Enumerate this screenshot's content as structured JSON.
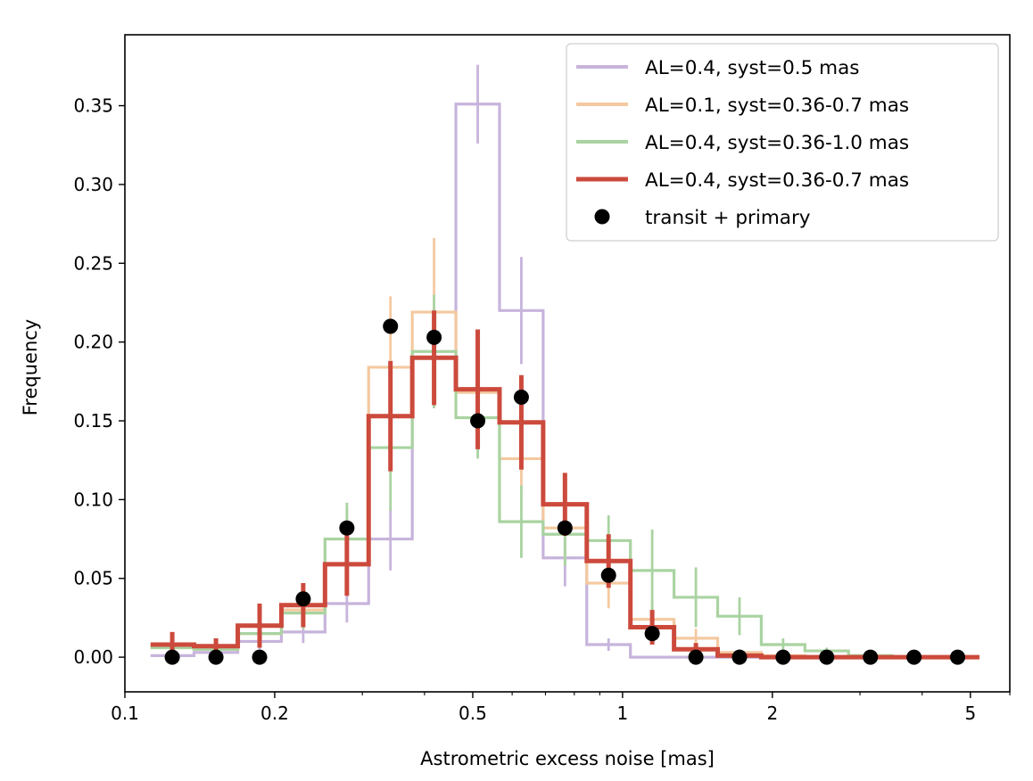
{
  "chart_data": {
    "type": "step-histogram",
    "xlabel": "Astrometric excess noise [mas]",
    "ylabel": "Frequency",
    "xscale": "log",
    "xlim": [
      0.1,
      6.0
    ],
    "ylim": [
      -0.022,
      0.395
    ],
    "xticks": [
      {
        "value": 0.1,
        "label": "0.1"
      },
      {
        "value": 0.2,
        "label": "0.2"
      },
      {
        "value": 0.5,
        "label": "0.5"
      },
      {
        "value": 1,
        "label": "1"
      },
      {
        "value": 2,
        "label": "2"
      },
      {
        "value": 5,
        "label": "5"
      }
    ],
    "yticks": [
      {
        "value": 0.0,
        "label": "0.00"
      },
      {
        "value": 0.05,
        "label": "0.05"
      },
      {
        "value": 0.1,
        "label": "0.10"
      },
      {
        "value": 0.15,
        "label": "0.15"
      },
      {
        "value": 0.2,
        "label": "0.20"
      },
      {
        "value": 0.25,
        "label": "0.25"
      },
      {
        "value": 0.3,
        "label": "0.30"
      },
      {
        "value": 0.35,
        "label": "0.35"
      }
    ],
    "bin_edges": [
      0.1126,
      0.1377,
      0.1686,
      0.2063,
      0.2524,
      0.3089,
      0.378,
      0.4625,
      0.566,
      0.6926,
      0.8475,
      1.037,
      1.269,
      1.553,
      1.9,
      2.325,
      2.845,
      3.482,
      4.261,
      5.214
    ],
    "bin_centers": [
      0.1245,
      0.1524,
      0.1865,
      0.2282,
      0.2793,
      0.3417,
      0.4181,
      0.5117,
      0.6261,
      0.7661,
      0.9374,
      1.147,
      1.404,
      1.718,
      2.102,
      2.572,
      3.148,
      3.852,
      4.713
    ],
    "series": [
      {
        "name": "AL=0.4, syst=0.5 mas",
        "color": "#c7b4dc",
        "style": "step",
        "values": [
          0.001,
          0.003,
          0.01,
          0.016,
          0.034,
          0.075,
          0.19,
          0.351,
          0.22,
          0.063,
          0.008,
          0.0,
          0.0,
          0.0,
          0.0,
          0.0,
          0.0,
          0.0,
          0.0
        ],
        "errors": [
          0.001,
          0.002,
          0.005,
          0.007,
          0.012,
          0.02,
          0.032,
          0.025,
          0.034,
          0.018,
          0.004,
          0.0,
          0.0,
          0.0,
          0.0,
          0.0,
          0.0,
          0.0,
          0.0
        ]
      },
      {
        "name": "AL=0.1, syst=0.36-0.7 mas",
        "color": "#f4c9a0",
        "style": "step",
        "values": [
          0.006,
          0.005,
          0.015,
          0.03,
          0.075,
          0.184,
          0.219,
          0.168,
          0.126,
          0.082,
          0.047,
          0.024,
          0.012,
          0.003,
          0.001,
          0.0,
          0.0,
          0.0,
          0.0
        ],
        "errors": [
          0.004,
          0.003,
          0.008,
          0.012,
          0.02,
          0.045,
          0.047,
          0.03,
          0.022,
          0.02,
          0.016,
          0.01,
          0.006,
          0.002,
          0.0,
          0.0,
          0.0,
          0.0,
          0.0
        ]
      },
      {
        "name": "AL=0.4, syst=0.36-1.0 mas",
        "color": "#a9d3a1",
        "style": "step",
        "values": [
          0.006,
          0.005,
          0.015,
          0.028,
          0.075,
          0.133,
          0.194,
          0.152,
          0.086,
          0.078,
          0.074,
          0.055,
          0.038,
          0.026,
          0.008,
          0.004,
          0.001,
          0.0,
          0.0
        ],
        "errors": [
          0.004,
          0.003,
          0.008,
          0.01,
          0.023,
          0.04,
          0.036,
          0.026,
          0.023,
          0.02,
          0.016,
          0.026,
          0.019,
          0.012,
          0.004,
          0.002,
          0.0,
          0.0,
          0.0
        ]
      },
      {
        "name": "AL=0.4, syst=0.36-0.7 mas",
        "color": "#cc4a3c",
        "style": "step-bold",
        "values": [
          0.008,
          0.007,
          0.02,
          0.033,
          0.059,
          0.153,
          0.19,
          0.17,
          0.149,
          0.097,
          0.061,
          0.019,
          0.005,
          0.001,
          0.0,
          0.0,
          0.0,
          0.0,
          0.0
        ],
        "errors": [
          0.008,
          0.005,
          0.014,
          0.014,
          0.02,
          0.035,
          0.03,
          0.038,
          0.03,
          0.02,
          0.017,
          0.011,
          0.004,
          0.001,
          0.0,
          0.0,
          0.0,
          0.0,
          0.0
        ]
      },
      {
        "name": "transit + primary",
        "color": "#000000",
        "style": "points",
        "values": [
          0.0,
          0.0,
          0.0,
          0.037,
          0.082,
          0.21,
          0.203,
          0.15,
          0.165,
          0.082,
          0.052,
          0.015,
          0.0,
          0.0,
          0.0,
          0.0,
          0.0,
          0.0,
          0.0
        ]
      }
    ],
    "legend": {
      "location": "upper right"
    }
  }
}
